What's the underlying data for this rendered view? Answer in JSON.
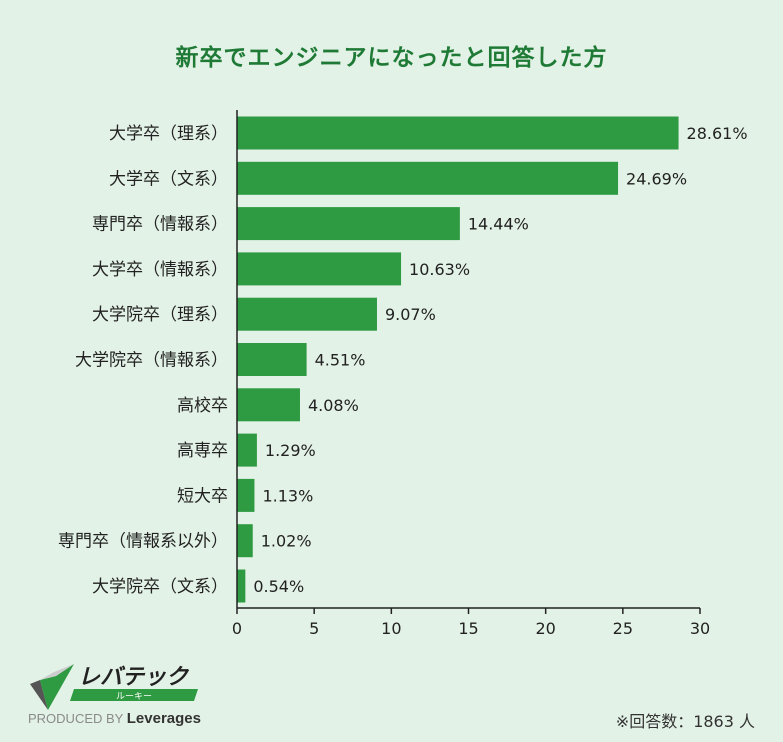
{
  "chart_data": {
    "type": "bar",
    "orientation": "horizontal",
    "title": "新卒でエンジニアになったと回答した方",
    "categories": [
      "大学卒（理系）",
      "大学卒（文系）",
      "専門卒（情報系）",
      "大学卒（情報系）",
      "大学院卒（理系）",
      "大学院卒（情報系）",
      "高校卒",
      "高専卒",
      "短大卒",
      "専門卒（情報系以外）",
      "大学院卒（文系）"
    ],
    "values": [
      28.61,
      24.69,
      14.44,
      10.63,
      9.07,
      4.51,
      4.08,
      1.29,
      1.13,
      1.02,
      0.54
    ],
    "data_labels": [
      "28.61%",
      "24.69%",
      "14.44%",
      "10.63%",
      "9.07%",
      "4.51%",
      "4.08%",
      "1.29%",
      "1.13%",
      "1.02%",
      "0.54%"
    ],
    "xlim": [
      0,
      30
    ],
    "xticks": [
      "0",
      "5",
      "10",
      "15",
      "20",
      "25",
      "30"
    ],
    "grid": false,
    "bar_color": "#2e9a42",
    "title_color": "#1f7a36"
  },
  "footer": {
    "note": "※回答数：1863 人",
    "logo": {
      "brand": "レバテック",
      "sub": "ルーキー",
      "produced_by": "PRODUCED BY",
      "company": "Leverages"
    }
  }
}
